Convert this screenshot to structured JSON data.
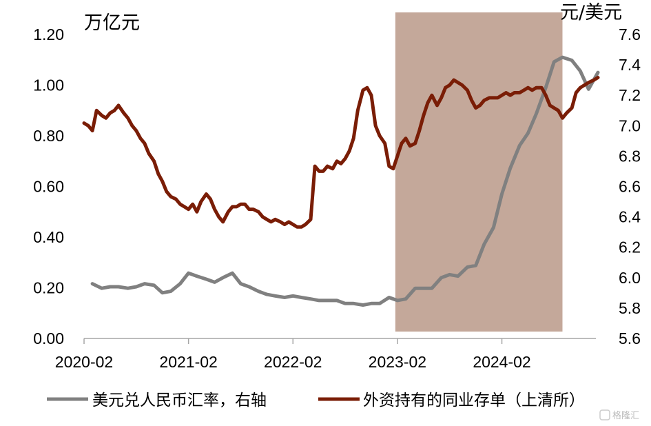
{
  "chart_data": {
    "type": "line",
    "y_unit_left": "万亿元",
    "y_unit_right": "元/美元",
    "xlim": [
      2020.0,
      2024.9
    ],
    "ylim_left": [
      0,
      1.2
    ],
    "ylim_right": [
      5.6,
      7.6
    ],
    "x_ticks": [
      {
        "label": "2020-02",
        "value": 2020.0
      },
      {
        "label": "2021-02",
        "value": 2021.0
      },
      {
        "label": "2022-02",
        "value": 2022.0
      },
      {
        "label": "2023-02",
        "value": 2023.0
      },
      {
        "label": "2024-02",
        "value": 2024.0
      }
    ],
    "y_ticks_left": [
      "0.00",
      "0.20",
      "0.40",
      "0.60",
      "0.80",
      "1.00",
      "1.20"
    ],
    "y_ticks_right": [
      "5.6",
      "5.8",
      "6.0",
      "6.2",
      "6.4",
      "6.6",
      "6.8",
      "7.0",
      "7.2",
      "7.4",
      "7.6"
    ],
    "shaded_region": {
      "x_start": 2022.98,
      "x_end": 2024.58,
      "color": "#c4a89a"
    },
    "grid": false,
    "legend_position": "bottom",
    "series": [
      {
        "name": "美元兑人民币汇率，右轴",
        "axis": "right",
        "color": "#808080",
        "x": [
          2020.08,
          2020.17,
          2020.25,
          2020.33,
          2020.42,
          2020.5,
          2020.58,
          2020.67,
          2020.75,
          2020.83,
          2020.92,
          2021.0,
          2021.08,
          2021.17,
          2021.25,
          2021.33,
          2021.42,
          2021.5,
          2021.58,
          2021.67,
          2021.75,
          2021.83,
          2021.92,
          2022.0,
          2022.08,
          2022.17,
          2022.25,
          2022.33,
          2022.42,
          2022.5,
          2022.58,
          2022.67,
          2022.75,
          2022.83,
          2022.92,
          2023.0,
          2023.08,
          2023.17,
          2023.25,
          2023.33,
          2023.42,
          2023.5,
          2023.58,
          2023.67,
          2023.75,
          2023.83,
          2023.92,
          2024.0,
          2024.08,
          2024.17,
          2024.25,
          2024.33,
          2024.42,
          2024.5,
          2024.58,
          2024.67,
          2024.75,
          2024.83,
          2024.92
        ],
        "values": [
          5.96,
          5.93,
          5.94,
          5.94,
          5.93,
          5.94,
          5.96,
          5.95,
          5.9,
          5.91,
          5.96,
          6.03,
          6.01,
          5.99,
          5.97,
          6.0,
          6.03,
          5.96,
          5.94,
          5.91,
          5.89,
          5.88,
          5.87,
          5.88,
          5.87,
          5.86,
          5.85,
          5.85,
          5.85,
          5.83,
          5.83,
          5.82,
          5.83,
          5.83,
          5.87,
          5.85,
          5.86,
          5.93,
          5.93,
          5.93,
          6.0,
          6.02,
          6.01,
          6.07,
          6.08,
          6.22,
          6.33,
          6.55,
          6.72,
          6.87,
          6.95,
          7.08,
          7.25,
          7.42,
          7.45,
          7.43,
          7.36,
          7.24,
          7.35
        ]
      },
      {
        "name": "外资持有的同业存单（上清所）",
        "axis": "left",
        "color": "#7a1d06",
        "x": [
          2020.0,
          2020.04,
          2020.08,
          2020.12,
          2020.17,
          2020.21,
          2020.25,
          2020.29,
          2020.33,
          2020.38,
          2020.42,
          2020.46,
          2020.5,
          2020.54,
          2020.58,
          2020.62,
          2020.67,
          2020.71,
          2020.75,
          2020.79,
          2020.83,
          2020.88,
          2020.92,
          2020.96,
          2021.0,
          2021.04,
          2021.08,
          2021.12,
          2021.17,
          2021.21,
          2021.25,
          2021.29,
          2021.33,
          2021.38,
          2021.42,
          2021.46,
          2021.5,
          2021.54,
          2021.58,
          2021.62,
          2021.67,
          2021.71,
          2021.75,
          2021.79,
          2021.83,
          2021.88,
          2021.92,
          2021.96,
          2022.0,
          2022.04,
          2022.08,
          2022.12,
          2022.17,
          2022.21,
          2022.25,
          2022.29,
          2022.33,
          2022.38,
          2022.42,
          2022.46,
          2022.5,
          2022.54,
          2022.58,
          2022.62,
          2022.67,
          2022.71,
          2022.75,
          2022.79,
          2022.83,
          2022.88,
          2022.92,
          2022.96,
          2023.0,
          2023.04,
          2023.08,
          2023.12,
          2023.17,
          2023.21,
          2023.25,
          2023.29,
          2023.33,
          2023.38,
          2023.42,
          2023.46,
          2023.5,
          2023.54,
          2023.58,
          2023.62,
          2023.67,
          2023.71,
          2023.75,
          2023.79,
          2023.83,
          2023.88,
          2023.92,
          2023.96,
          2024.0,
          2024.04,
          2024.08,
          2024.12,
          2024.17,
          2024.21,
          2024.25,
          2024.29,
          2024.33,
          2024.38,
          2024.42,
          2024.46,
          2024.5,
          2024.54,
          2024.58,
          2024.62,
          2024.67,
          2024.71,
          2024.75,
          2024.79,
          2024.83,
          2024.88,
          2024.92
        ],
        "values": [
          0.85,
          0.84,
          0.82,
          0.9,
          0.88,
          0.87,
          0.89,
          0.9,
          0.92,
          0.89,
          0.87,
          0.84,
          0.82,
          0.79,
          0.77,
          0.73,
          0.7,
          0.65,
          0.62,
          0.58,
          0.56,
          0.55,
          0.53,
          0.52,
          0.51,
          0.53,
          0.5,
          0.54,
          0.57,
          0.55,
          0.51,
          0.48,
          0.46,
          0.5,
          0.52,
          0.52,
          0.53,
          0.53,
          0.51,
          0.51,
          0.5,
          0.48,
          0.47,
          0.46,
          0.47,
          0.46,
          0.45,
          0.46,
          0.45,
          0.44,
          0.44,
          0.45,
          0.47,
          0.68,
          0.66,
          0.66,
          0.68,
          0.67,
          0.7,
          0.69,
          0.71,
          0.74,
          0.79,
          0.9,
          0.98,
          0.99,
          0.96,
          0.84,
          0.8,
          0.77,
          0.68,
          0.67,
          0.72,
          0.77,
          0.79,
          0.76,
          0.77,
          0.82,
          0.88,
          0.93,
          0.96,
          0.92,
          0.95,
          0.99,
          1.0,
          1.02,
          1.01,
          1.0,
          0.98,
          0.94,
          0.91,
          0.92,
          0.94,
          0.95,
          0.95,
          0.95,
          0.96,
          0.97,
          0.96,
          0.97,
          0.97,
          0.98,
          0.99,
          0.98,
          0.99,
          0.99,
          0.96,
          0.92,
          0.91,
          0.9,
          0.87,
          0.89,
          0.91,
          0.97,
          0.99,
          1.0,
          1.01,
          1.02,
          1.03
        ]
      }
    ]
  },
  "watermark": "格隆汇"
}
